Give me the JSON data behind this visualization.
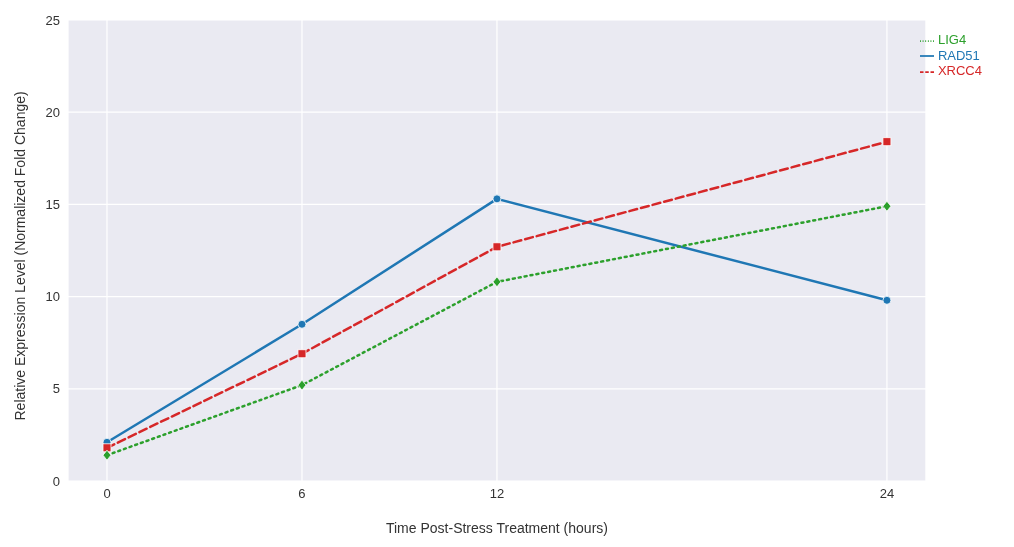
{
  "chart_data": {
    "type": "line",
    "xlabel": "Time Post-Stress Treatment (hours)",
    "ylabel": "Relative Expression Level (Normalized Fold Change)",
    "x": [
      0,
      6,
      12,
      24
    ],
    "series": [
      {
        "name": "RAD51",
        "color": "#1f77b4",
        "values": [
          2.1,
          8.5,
          15.3,
          9.8
        ],
        "marker": "circle",
        "line_style": "solid"
      },
      {
        "name": "XRCC4",
        "color": "#d62728",
        "values": [
          1.8,
          6.9,
          12.7,
          18.4
        ],
        "marker": "square",
        "line_style": "dashed"
      },
      {
        "name": "LIG4",
        "color": "#2ca02c",
        "values": [
          1.4,
          5.2,
          10.8,
          14.9
        ],
        "marker": "diamond",
        "line_style": "dotted"
      }
    ],
    "xlim": [
      -1.2,
      25.2
    ],
    "xticks": [
      0,
      6,
      12,
      24
    ],
    "ylim": [
      0,
      25
    ],
    "yticks": [
      0,
      5,
      10,
      15,
      20,
      25
    ],
    "grid": true,
    "legend": "top right"
  }
}
